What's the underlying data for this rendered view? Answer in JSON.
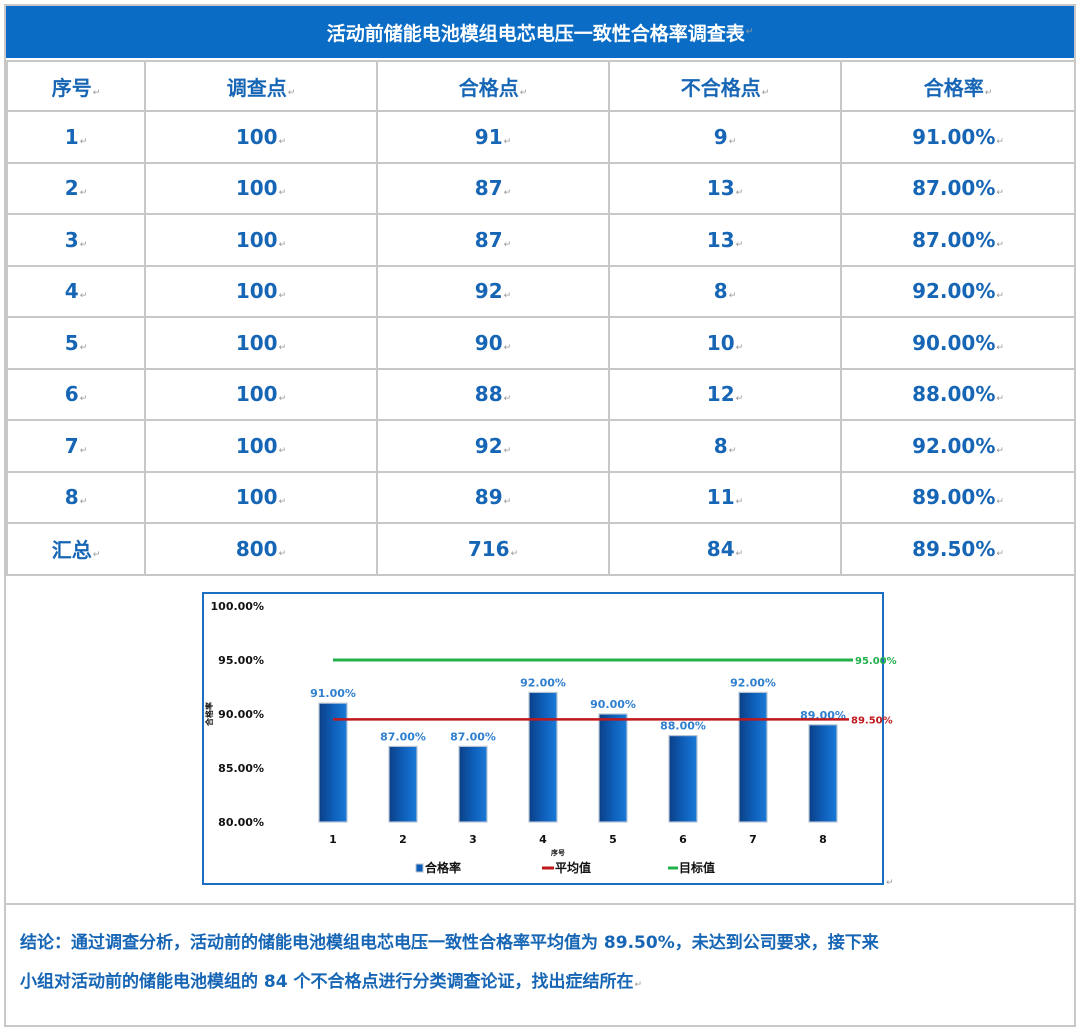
{
  "table": {
    "title": "活动前储能电池模组电芯电压一致性合格率调查表",
    "headers": [
      "序号",
      "调查点",
      "合格点",
      "不合格点",
      "合格率"
    ],
    "rows": [
      [
        "1",
        "100",
        "91",
        "9",
        "91.00%"
      ],
      [
        "2",
        "100",
        "87",
        "13",
        "87.00%"
      ],
      [
        "3",
        "100",
        "87",
        "13",
        "87.00%"
      ],
      [
        "4",
        "100",
        "92",
        "8",
        "92.00%"
      ],
      [
        "5",
        "100",
        "90",
        "10",
        "90.00%"
      ],
      [
        "6",
        "100",
        "88",
        "12",
        "88.00%"
      ],
      [
        "7",
        "100",
        "92",
        "8",
        "92.00%"
      ],
      [
        "8",
        "100",
        "89",
        "11",
        "89.00%"
      ]
    ],
    "total": [
      "汇总",
      "800",
      "716",
      "84",
      "89.50%"
    ]
  },
  "chart_data": {
    "type": "bar",
    "title": "",
    "xlabel": "序号",
    "ylabel": "合格率",
    "categories": [
      "1",
      "2",
      "3",
      "4",
      "5",
      "6",
      "7",
      "8"
    ],
    "ylim": [
      80,
      100
    ],
    "yticks": [
      "100.00%",
      "95.00%",
      "90.00%",
      "85.00%",
      "80.00%"
    ],
    "series": [
      {
        "name": "合格率",
        "type": "bar",
        "values": [
          91,
          87,
          87,
          92,
          90,
          88,
          92,
          89
        ],
        "labels": [
          "91.00%",
          "87.00%",
          "87.00%",
          "92.00%",
          "90.00%",
          "88.00%",
          "92.00%",
          "89.00%"
        ]
      },
      {
        "name": "平均值",
        "type": "line",
        "value": 89.5,
        "label": "89.50%"
      },
      {
        "name": "目标值",
        "type": "line",
        "value": 95,
        "label": "95.00%"
      }
    ],
    "grid": false,
    "legend": "bottom",
    "colors": {
      "bar": "#0e5eb8",
      "average": "#c0181c",
      "target": "#22b04b",
      "label": "#2f7fcf"
    }
  },
  "conclusion": {
    "line1": "结论：通过调查分析，活动前的储能电池模组电芯电压一致性合格率平均值为 89.50%，未达到公司要求，接下来",
    "line2": "小组对活动前的储能电池模组的 84 个不合格点进行分类调查论证，找出症结所在"
  }
}
